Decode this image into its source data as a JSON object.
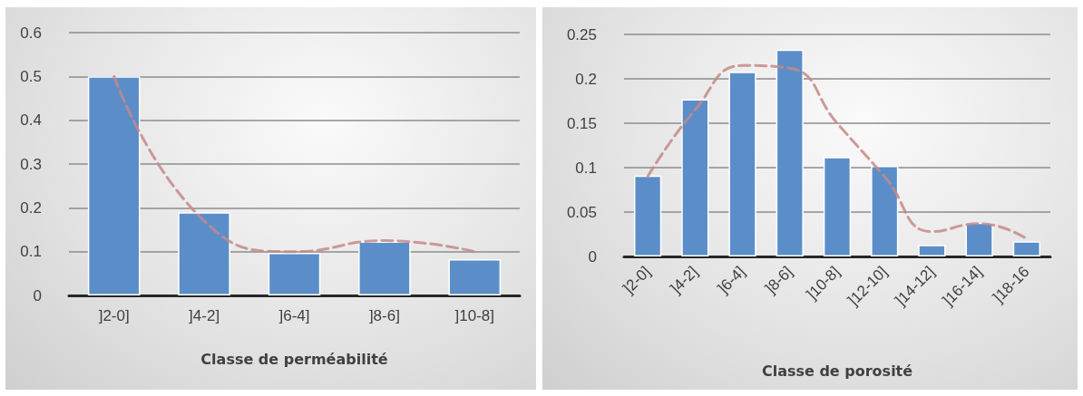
{
  "chart_data": [
    {
      "type": "bar",
      "xlabel": "Classe de perméabilité",
      "categories": [
        "]2-0]",
        "]4-2]",
        "]6-4]",
        "]8-6]",
        "]10-8]"
      ],
      "ylim": [
        0,
        0.6
      ],
      "yticks": [
        0,
        0.1,
        0.2,
        0.3,
        0.4,
        0.5,
        0.6
      ],
      "grid": "y",
      "series": [
        {
          "color": "#5b8ec9",
          "values": [
            0.5,
            0.19,
            0.097,
            0.123,
            0.083
          ]
        },
        {
          "type": "line",
          "color": "#c48a88",
          "line_style": "dashed",
          "marker": "none",
          "values": [
            0.5,
            0.17,
            0.1,
            0.125,
            0.1
          ]
        }
      ]
    },
    {
      "type": "bar",
      "xlabel": "Classe de porosité",
      "categories": [
        "]2-0]",
        "]4-2]",
        "]6-4]",
        "]8-6]",
        "]10-8]",
        "]12-10]",
        "]14-12]",
        "]16-14]",
        "]18-16"
      ],
      "ylim": [
        0,
        0.25
      ],
      "yticks": [
        0,
        0.05,
        0.1,
        0.15,
        0.2,
        0.25
      ],
      "grid": "y",
      "series": [
        {
          "color": "#5b8ec9",
          "values": [
            0.091,
            0.177,
            0.208,
            0.233,
            0.112,
            0.102,
            0.013,
            0.038,
            0.017
          ]
        },
        {
          "type": "line",
          "color": "#c48a88",
          "line_style": "dashed",
          "marker": "none",
          "values": [
            0.09,
            0.165,
            0.215,
            0.212,
            0.15,
            0.09,
            0.028,
            0.037,
            0.02
          ]
        }
      ]
    }
  ]
}
